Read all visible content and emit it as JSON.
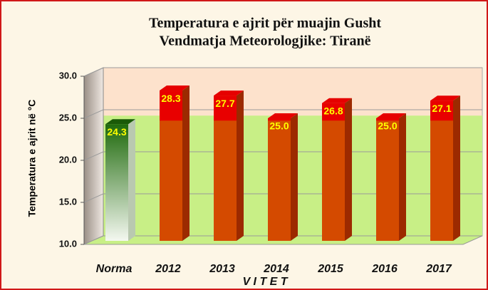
{
  "chart_data": {
    "type": "bar3d",
    "title": "Temperatura e ajrit për muajin Gusht",
    "subtitle": "Vendmatja Meteorologjike: Tiranë",
    "ylabel": "Temperatura e ajrit në °C",
    "xlabel": "V I T E T",
    "categories": [
      "Norma",
      "2012",
      "2013",
      "2014",
      "2015",
      "2016",
      "2017"
    ],
    "values": [
      24.3,
      28.3,
      27.7,
      25.0,
      26.8,
      25.0,
      27.1
    ],
    "value_labels": [
      "24.3",
      "28.3",
      "27.7",
      "25.0",
      "26.8",
      "25.0",
      "27.1"
    ],
    "colors": [
      "#2e7d12",
      "#d44a00",
      "#d44a00",
      "#d44a00",
      "#d44a00",
      "#d44a00",
      "#d44a00"
    ],
    "ylim": [
      10,
      30
    ],
    "yticks": [
      {
        "value": 10,
        "label": "10.0"
      },
      {
        "value": 15,
        "label": "15.0"
      },
      {
        "value": 20,
        "label": "20.0"
      },
      {
        "value": 25,
        "label": "25.0"
      },
      {
        "value": 30,
        "label": "30.0"
      }
    ],
    "grid": true
  }
}
